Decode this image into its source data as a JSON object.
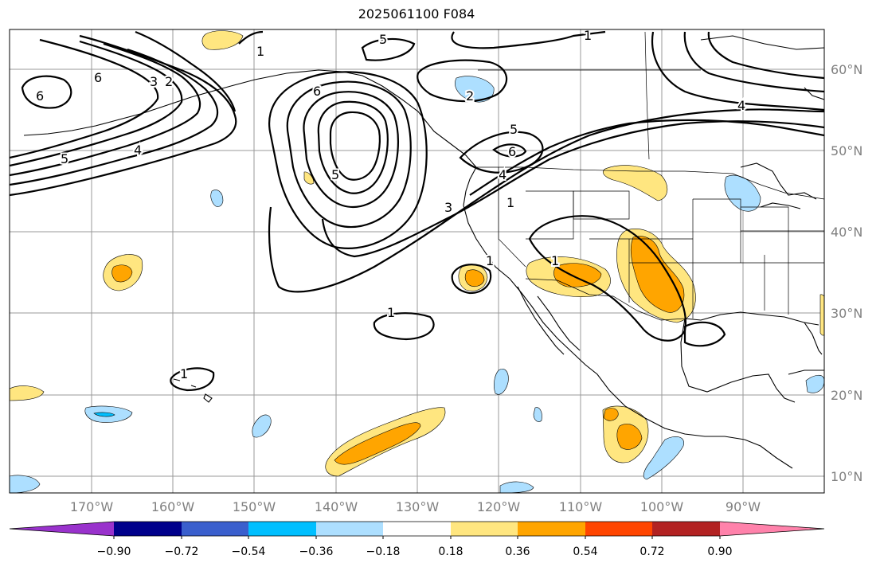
{
  "title": "2025061100 F084",
  "map": {
    "type": "contour-and-shaded-anomaly",
    "projection": "PlateCarree",
    "lon_range": [
      -180,
      -80
    ],
    "lat_range": [
      8,
      65
    ],
    "longitude_labels": [
      "170°W",
      "160°W",
      "150°W",
      "140°W",
      "130°W",
      "120°W",
      "110°W",
      "100°W",
      "90°W"
    ],
    "latitude_labels": [
      "60°N",
      "50°N",
      "40°N",
      "30°N",
      "20°N",
      "10°N"
    ],
    "contour_labels": [
      "1",
      "2",
      "3",
      "4",
      "5",
      "6"
    ]
  },
  "colorbar": {
    "tick_labels": [
      "−0.90",
      "−0.72",
      "−0.54",
      "−0.36",
      "−0.18",
      "0.18",
      "0.36",
      "0.54",
      "0.72",
      "0.90"
    ],
    "colors": [
      "#9932CC",
      "#00008B",
      "#3A5FCD",
      "#00BFFF",
      "#ADDFFF",
      "#FFFFFF",
      "#FFE680",
      "#FFA500",
      "#FF4500",
      "#B22222",
      "#FF82AB"
    ]
  }
}
